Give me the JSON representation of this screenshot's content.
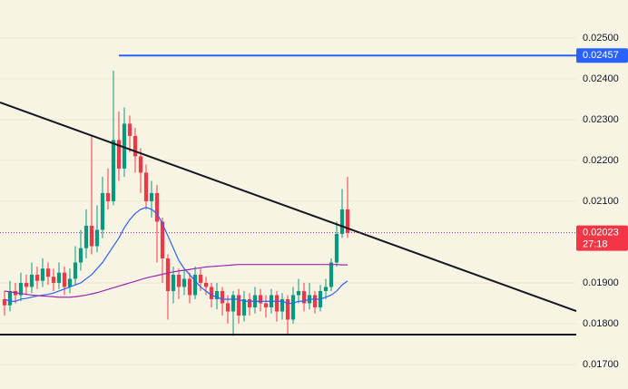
{
  "chart_data": {
    "type": "candlestick",
    "up_color": "#089981",
    "down_color": "#f23645",
    "grid": true,
    "xlim": [
      -0.83,
      105
    ],
    "ylim": [
      0.0164,
      0.02593
    ],
    "yticks": [
      {
        "value": 0.017,
        "label": "0.01700"
      },
      {
        "value": 0.018,
        "label": "0.01800"
      },
      {
        "value": 0.019,
        "label": "0.01900"
      },
      {
        "value": 0.021,
        "label": "0.02100"
      },
      {
        "value": 0.022,
        "label": "0.02200"
      },
      {
        "value": 0.023,
        "label": "0.02300"
      },
      {
        "value": 0.024,
        "label": "0.02400"
      },
      {
        "value": 0.025,
        "label": "0.02500"
      }
    ],
    "open": [
      0.0186,
      0.01845,
      0.0188,
      0.0187,
      0.019,
      0.0189,
      0.0192,
      0.01905,
      0.01935,
      0.01915,
      0.019,
      0.01925,
      0.0189,
      0.0191,
      0.0195,
      0.01985,
      0.0204,
      0.0199,
      0.0203,
      0.0212,
      0.021,
      0.0225,
      0.0218,
      0.0229,
      0.0226,
      0.0221,
      0.0217,
      0.021,
      0.0212,
      0.0205,
      0.0196,
      0.0188,
      0.0192,
      0.0189,
      0.0191,
      0.0187,
      0.0192,
      0.019,
      0.0189,
      0.0186,
      0.0188,
      0.0185,
      0.0183,
      0.0187,
      0.0182,
      0.0186,
      0.0184,
      0.0187,
      0.0185,
      0.0184,
      0.0187,
      0.0183,
      0.0186,
      0.0181,
      0.0187,
      0.0188,
      0.0185,
      0.0187,
      0.0184,
      0.0188,
      0.0189,
      0.0195,
      0.0202,
      0.0208
    ],
    "high": [
      0.0188,
      0.01905,
      0.019,
      0.01925,
      0.0192,
      0.0195,
      0.0194,
      0.0196,
      0.0195,
      0.01935,
      0.0195,
      0.0194,
      0.01935,
      0.0199,
      0.0203,
      0.0208,
      0.0226,
      0.0209,
      0.0216,
      0.0218,
      0.0242,
      0.0232,
      0.0233,
      0.0231,
      0.0228,
      0.0223,
      0.0219,
      0.0215,
      0.0214,
      0.0206,
      0.0197,
      0.0194,
      0.01935,
      0.0193,
      0.01925,
      0.0194,
      0.01935,
      0.01915,
      0.019,
      0.019,
      0.0189,
      0.0187,
      0.0188,
      0.01885,
      0.0188,
      0.01875,
      0.0189,
      0.01885,
      0.0187,
      0.01885,
      0.0188,
      0.01875,
      0.0187,
      0.0189,
      0.0191,
      0.019,
      0.019,
      0.0188,
      0.01895,
      0.0191,
      0.0196,
      0.0205,
      0.0213,
      0.0216
    ],
    "low": [
      0.0182,
      0.0183,
      0.0185,
      0.01855,
      0.0187,
      0.01875,
      0.01885,
      0.0189,
      0.01895,
      0.0188,
      0.01885,
      0.0187,
      0.01875,
      0.01895,
      0.0193,
      0.0196,
      0.0197,
      0.01975,
      0.0201,
      0.0208,
      0.0209,
      0.0215,
      0.0216,
      0.0222,
      0.0217,
      0.0212,
      0.0208,
      0.0206,
      0.0195,
      0.019,
      0.0181,
      0.0185,
      0.0186,
      0.0187,
      0.0185,
      0.0186,
      0.0188,
      0.0187,
      0.0184,
      0.01835,
      0.0182,
      0.018,
      0.0177,
      0.018,
      0.01805,
      0.0182,
      0.01825,
      0.0183,
      0.01815,
      0.01825,
      0.01805,
      0.0181,
      0.01775,
      0.018,
      0.0185,
      0.0183,
      0.01835,
      0.01825,
      0.0183,
      0.0186,
      0.0188,
      0.0194,
      0.0201,
      0.0201
    ],
    "close": [
      0.01845,
      0.0188,
      0.0187,
      0.019,
      0.0189,
      0.0192,
      0.01905,
      0.01935,
      0.01915,
      0.019,
      0.01925,
      0.0189,
      0.0191,
      0.0195,
      0.01985,
      0.0204,
      0.0199,
      0.0203,
      0.0212,
      0.021,
      0.0225,
      0.0218,
      0.0229,
      0.0226,
      0.0221,
      0.0217,
      0.021,
      0.0212,
      0.0205,
      0.0196,
      0.0188,
      0.0192,
      0.0189,
      0.0191,
      0.0187,
      0.0192,
      0.019,
      0.0189,
      0.0186,
      0.0188,
      0.0185,
      0.0183,
      0.0187,
      0.0182,
      0.0186,
      0.0184,
      0.0187,
      0.0185,
      0.0184,
      0.0187,
      0.0183,
      0.0186,
      0.0181,
      0.0187,
      0.0188,
      0.0185,
      0.0187,
      0.0184,
      0.0188,
      0.0189,
      0.0195,
      0.0202,
      0.0208,
      0.02023
    ],
    "series": [
      {
        "color": "#2962ff",
        "values": [
          0.0186,
          0.01855,
          0.01855,
          0.0186,
          0.01862,
          0.01865,
          0.01868,
          0.0187,
          0.01872,
          0.01875,
          0.0188,
          0.01885,
          0.0189,
          0.01895,
          0.019,
          0.0191,
          0.0192,
          0.01935,
          0.0195,
          0.0197,
          0.0199,
          0.0201,
          0.02035,
          0.02055,
          0.0207,
          0.0208,
          0.02085,
          0.0208,
          0.0207,
          0.02045,
          0.02015,
          0.01985,
          0.01955,
          0.01935,
          0.0192,
          0.01905,
          0.0189,
          0.0188,
          0.0187,
          0.01865,
          0.0186,
          0.0186,
          0.0186,
          0.0186,
          0.01855,
          0.01855,
          0.01855,
          0.01855,
          0.01855,
          0.01855,
          0.01855,
          0.01855,
          0.0185,
          0.0185,
          0.01855,
          0.01855,
          0.0186,
          0.0186,
          0.0186,
          0.01865,
          0.0187,
          0.0188,
          0.01895,
          0.01905
        ]
      },
      {
        "color": "#9c27b0",
        "values": [
          0.0188,
          0.01878,
          0.01876,
          0.01874,
          0.01872,
          0.0187,
          0.01869,
          0.01868,
          0.01867,
          0.01866,
          0.01865,
          0.01865,
          0.01865,
          0.01866,
          0.01868,
          0.0187,
          0.01873,
          0.01876,
          0.0188,
          0.01884,
          0.01888,
          0.01892,
          0.01896,
          0.019,
          0.01904,
          0.01908,
          0.01912,
          0.01915,
          0.01918,
          0.01921,
          0.01924,
          0.01927,
          0.01929,
          0.01931,
          0.01933,
          0.01935,
          0.01937,
          0.01939,
          0.0194,
          0.01941,
          0.01942,
          0.01943,
          0.01944,
          0.01945,
          0.01945,
          0.01945,
          0.01945,
          0.01945,
          0.01945,
          0.01945,
          0.01945,
          0.01945,
          0.01945,
          0.01945,
          0.01945,
          0.01945,
          0.01945,
          0.01945,
          0.01945,
          0.01945,
          0.01945,
          0.01945,
          0.01944,
          0.01944
        ]
      }
    ],
    "lines": [
      {
        "color": "#131722",
        "x": [
          -0.83,
          105
        ],
        "values": [
          0.02342,
          0.01831
        ]
      },
      {
        "color": "#131722",
        "x": [
          -0.83,
          105
        ],
        "values": [
          0.017733,
          0.017733
        ]
      },
      {
        "color": "#2962ff",
        "x": [
          21,
          105
        ],
        "values": [
          0.02457,
          0.02457
        ]
      }
    ],
    "price_tags": [
      {
        "value": 0.02457,
        "label": "0.02457",
        "color": "#2962ff"
      },
      {
        "value": 0.02023,
        "label": "0.02023",
        "countdown": "27:18",
        "color": "#f23645"
      }
    ]
  }
}
